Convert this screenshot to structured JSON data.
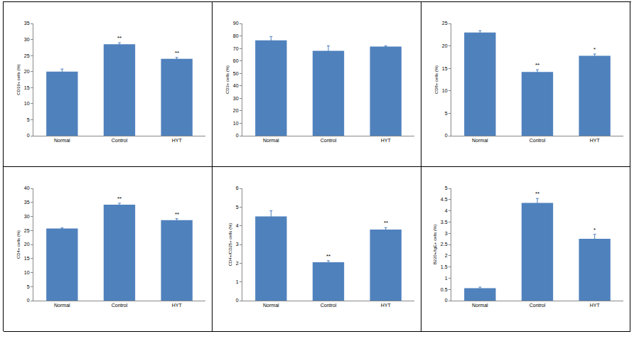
{
  "chart_data": [
    {
      "type": "bar",
      "ylabel": "CD19+ cells (%)",
      "categories": [
        "Normal",
        "Control",
        "HYT"
      ],
      "values": [
        20,
        28.5,
        24
      ],
      "errors": [
        0.8,
        0.5,
        0.4
      ],
      "significance": [
        null,
        "**",
        "**"
      ],
      "color": "#4f81bd",
      "ylim": [
        0,
        35
      ],
      "yticks": [
        0,
        5,
        10,
        15,
        20,
        25,
        30,
        35
      ],
      "grid": false
    },
    {
      "type": "bar",
      "ylabel": "CD3+ cells (%)",
      "categories": [
        "Normal",
        "Control",
        "HYT"
      ],
      "values": [
        76.5,
        68,
        71.5
      ],
      "errors": [
        3,
        4,
        0.5
      ],
      "significance": [
        null,
        null,
        null
      ],
      "color": "#4f81bd",
      "ylim": [
        0,
        90
      ],
      "yticks": [
        0,
        10,
        20,
        30,
        40,
        50,
        60,
        70,
        80,
        90
      ],
      "grid": false
    },
    {
      "type": "bar",
      "ylabel": "CD8+ cells (%)",
      "categories": [
        "Normal",
        "Control",
        "HYT"
      ],
      "values": [
        23,
        14.2,
        17.8
      ],
      "errors": [
        0.4,
        0.5,
        0.4
      ],
      "significance": [
        null,
        "**",
        "*"
      ],
      "color": "#4f81bd",
      "ylim": [
        0,
        25
      ],
      "yticks": [
        0,
        5,
        10,
        15,
        20,
        25
      ],
      "grid": false
    },
    {
      "type": "bar",
      "ylabel": "CD4+ cells (%)",
      "categories": [
        "Normal",
        "Control",
        "HYT"
      ],
      "values": [
        25.7,
        34.2,
        28.7
      ],
      "errors": [
        0.2,
        0.5,
        0.5
      ],
      "significance": [
        null,
        "**",
        "**"
      ],
      "color": "#4f81bd",
      "ylim": [
        0,
        40
      ],
      "yticks": [
        0,
        5,
        10,
        15,
        20,
        25,
        30,
        35,
        40
      ],
      "grid": false
    },
    {
      "type": "bar",
      "ylabel": "CD4+/CD25+ cells (%)",
      "categories": [
        "Normal",
        "Control",
        "HYT"
      ],
      "values": [
        4.5,
        2.05,
        3.8
      ],
      "errors": [
        0.3,
        0.08,
        0.1
      ],
      "significance": [
        null,
        "**",
        "**"
      ],
      "color": "#4f81bd",
      "ylim": [
        0,
        6
      ],
      "yticks": [
        0,
        1,
        2,
        3,
        4,
        5,
        6
      ],
      "grid": false
    },
    {
      "type": "bar",
      "ylabel": "B220+/IgE+ cells (%)",
      "categories": [
        "Normal",
        "Control",
        "HYT"
      ],
      "values": [
        0.55,
        4.35,
        2.75
      ],
      "errors": [
        0.05,
        0.2,
        0.2
      ],
      "significance": [
        null,
        "**",
        "*"
      ],
      "color": "#4f81bd",
      "ylim": [
        0,
        5
      ],
      "yticks": [
        0,
        0.5,
        1,
        1.5,
        2,
        2.5,
        3,
        3.5,
        4,
        4.5,
        5
      ],
      "grid": false
    }
  ]
}
